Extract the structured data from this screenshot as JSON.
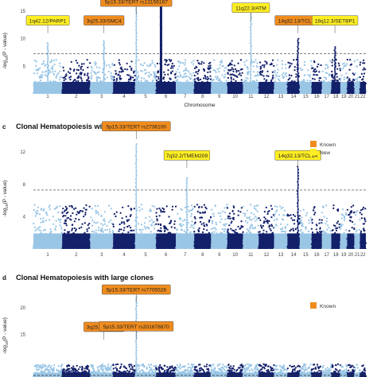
{
  "colors": {
    "dark": "#13206a",
    "light": "#9ac6e6",
    "known": "#f08c1e",
    "new": "#ffee22",
    "threshold": "#333333"
  },
  "chart_data": [
    {
      "type": "scatter",
      "panel_letter": "",
      "title": "",
      "xlabel": "Chromosome",
      "ylabel_main": "-log",
      "ylabel_sub": "10",
      "ylabel_tail": "(P - value)",
      "ylim": [
        0,
        17
      ],
      "yticks": [
        5,
        10,
        15
      ],
      "threshold": 7.3,
      "chromosomes": [
        "1",
        "2",
        "3",
        "4",
        "5",
        "6",
        "7",
        "8",
        "9",
        "10",
        "11",
        "12",
        "13",
        "14",
        "15",
        "16",
        "17",
        "18",
        "19",
        "20",
        "21",
        "22"
      ],
      "peaks": [
        {
          "chr": 1,
          "pos": 0.5,
          "p": 9.2
        },
        {
          "chr": 3,
          "pos": 0.6,
          "p": 9.6
        },
        {
          "chr": 5,
          "pos": 0.05,
          "p": 16.5
        },
        {
          "chr": 6,
          "pos": 0.25,
          "p": 17
        },
        {
          "chr": 11,
          "pos": 0.5,
          "p": 15.5
        },
        {
          "chr": 14,
          "pos": 0.85,
          "p": 10.0
        },
        {
          "chr": 18,
          "pos": 0.4,
          "p": 8.5
        }
      ],
      "annotations": [
        {
          "label": "1q42.12/PARP1",
          "status": "new",
          "chr": 1,
          "pos": 0.5,
          "y": 13.3
        },
        {
          "label": "3q25.33/SMC4",
          "status": "known",
          "chr": 3,
          "pos": 0.6,
          "y": 13.3
        },
        {
          "label": "5p15.33/TERT rs13156167",
          "status": "known",
          "chr": 5,
          "pos": 0.05,
          "y": 16.7
        },
        {
          "label": "11q22.3/ATM",
          "status": "new",
          "chr": 11,
          "pos": 0.5,
          "y": 15.6
        },
        {
          "label": "14q32.13/TCL1A",
          "status": "known",
          "chr": 14,
          "pos": 0.85,
          "y": 13.3
        },
        {
          "label": "18q12.3/SETBP1",
          "status": "new",
          "chr": 18,
          "pos": 0.4,
          "y": 13.3
        }
      ],
      "legend": []
    },
    {
      "type": "scatter",
      "panel_letter": "c",
      "title": "Clonal Hematopoiesis with TET2 mutations",
      "xlabel": "",
      "ylabel_main": "-log",
      "ylabel_sub": "10",
      "ylabel_tail": "(P - value)",
      "ylim": [
        0,
        13.5
      ],
      "yticks": [
        4,
        8,
        12
      ],
      "threshold": 7.3,
      "chromosomes": [
        "1",
        "2",
        "3",
        "4",
        "5",
        "6",
        "7",
        "8",
        "9",
        "10",
        "11",
        "12",
        "13",
        "14",
        "15",
        "16",
        "17",
        "18",
        "19",
        "20",
        "21",
        "22"
      ],
      "peaks": [
        {
          "chr": 5,
          "pos": 0.05,
          "p": 13.0
        },
        {
          "chr": 7,
          "pos": 0.6,
          "p": 8.8
        },
        {
          "chr": 14,
          "pos": 0.85,
          "p": 10.2
        }
      ],
      "annotations": [
        {
          "label": "5p15.33/TERT rs2736100",
          "status": "known",
          "chr": 5,
          "pos": 0.05,
          "y": 15.2
        },
        {
          "label": "7q32.2/TMEM209",
          "status": "new",
          "chr": 7,
          "pos": 0.6,
          "y": 11.6
        },
        {
          "label": "14q32.13/TCL1A",
          "status": "new",
          "chr": 14,
          "pos": 0.85,
          "y": 11.6
        }
      ],
      "legend": [
        "Known",
        "New"
      ]
    },
    {
      "type": "scatter",
      "panel_letter": "d",
      "title": "Clonal Hematopoiesis with large clones",
      "xlabel": "",
      "ylabel_main": "-log",
      "ylabel_sub": "10",
      "ylabel_tail": "(P - value)",
      "ylim": [
        7,
        24
      ],
      "yticks": [
        15,
        20
      ],
      "threshold": 7.3,
      "chromosomes": [],
      "peaks": [
        {
          "chr": 3,
          "pos": 0.6,
          "p": 7.9
        },
        {
          "chr": 5,
          "pos": 0.05,
          "p": 22.0
        }
      ],
      "annotations": [
        {
          "label": "5p15.33/TERT rs7705526",
          "status": "known",
          "chr": 5,
          "pos": 0.05,
          "y": 23.4
        },
        {
          "label": "3q25.33/SMC4",
          "status": "known",
          "chr": 3,
          "pos": 0.6,
          "y": 16.4
        },
        {
          "label": "5p15.33/TERT rs201878870",
          "status": "known",
          "chr": 5,
          "pos": 0.05,
          "y": 16.5
        }
      ],
      "legend": [
        "Known"
      ]
    }
  ]
}
